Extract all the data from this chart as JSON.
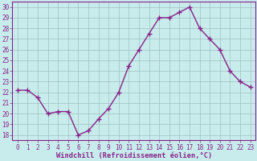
{
  "x": [
    0,
    1,
    2,
    3,
    4,
    5,
    6,
    7,
    8,
    9,
    10,
    11,
    12,
    13,
    14,
    15,
    16,
    17,
    18,
    19,
    20,
    21,
    22,
    23
  ],
  "y": [
    22.2,
    22.2,
    21.5,
    20.0,
    20.2,
    20.2,
    18.0,
    18.4,
    19.5,
    20.5,
    22.0,
    24.5,
    26.0,
    27.5,
    29.0,
    29.0,
    29.5,
    30.0,
    28.0,
    27.0,
    26.0,
    24.0,
    23.0,
    22.5
  ],
  "line_color": "#882288",
  "marker": "+",
  "marker_size": 4,
  "marker_lw": 1.0,
  "line_width": 1.0,
  "bg_color": "#c8ecec",
  "grid_color": "#a0c0c0",
  "ylabel_ticks": [
    18,
    19,
    20,
    21,
    22,
    23,
    24,
    25,
    26,
    27,
    28,
    29,
    30
  ],
  "ylim": [
    17.5,
    30.5
  ],
  "xlim": [
    -0.5,
    23.5
  ],
  "xlabel": "Windchill (Refroidissement éolien,°C)",
  "xlabel_color": "#882288",
  "tick_color": "#882288",
  "tick_fontsize": 5.5,
  "xlabel_fontsize": 6.2,
  "figwidth": 3.2,
  "figheight": 2.0,
  "dpi": 100
}
